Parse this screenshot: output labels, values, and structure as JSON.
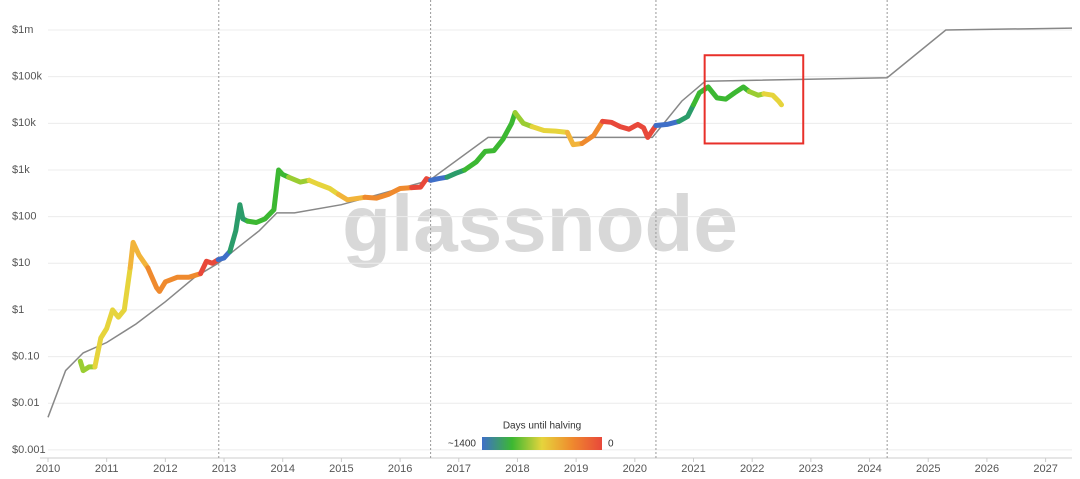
{
  "chart_data": {
    "type": "scatter",
    "log_y": true,
    "grid": true,
    "watermark": "glassnode",
    "xlim": [
      2010,
      2027.45
    ],
    "xticks": [
      2010,
      2011,
      2012,
      2013,
      2014,
      2015,
      2016,
      2017,
      2018,
      2019,
      2020,
      2021,
      2022,
      2023,
      2024,
      2025,
      2026,
      2027
    ],
    "ylim": [
      0.00067,
      4400000
    ],
    "yticks": [
      {
        "value": 0.001,
        "label": "$0.001"
      },
      {
        "value": 0.01,
        "label": "$0.01"
      },
      {
        "value": 0.1,
        "label": "$0.10"
      },
      {
        "value": 1,
        "label": "$1"
      },
      {
        "value": 10,
        "label": "$10"
      },
      {
        "value": 100,
        "label": "$100"
      },
      {
        "value": 1000,
        "label": "$1k"
      },
      {
        "value": 10000,
        "label": "$10k"
      },
      {
        "value": 100000,
        "label": "$100k"
      },
      {
        "value": 1000000,
        "label": "$1m"
      }
    ],
    "vlines": [
      2012.91,
      2016.52,
      2020.36,
      2024.3
    ],
    "highlight_box": {
      "x": [
        2021.19,
        2022.87
      ],
      "y": [
        3700,
        288000
      ],
      "color": "#e8302a"
    },
    "colorbar": {
      "title": "Days until halving",
      "min_label": "~1400",
      "max_label": "0",
      "colors": [
        "#3f6fc8",
        "#3cb832",
        "#e6d43c",
        "#ef8a2e",
        "#e8483a"
      ]
    },
    "line_series": {
      "color": "#888888",
      "x": [
        2010,
        2010.3,
        2010.6,
        2011,
        2011.5,
        2012,
        2012.5,
        2012.9,
        2013.2,
        2013.6,
        2013.9,
        2014.2,
        2015,
        2016,
        2016.5,
        2017.5,
        2020.3,
        2020.8,
        2021.2,
        2024.3,
        2025.3,
        2027.45
      ],
      "values": [
        0.005,
        0.05,
        0.12,
        0.2,
        0.5,
        1.5,
        5,
        10,
        20,
        50,
        120,
        120,
        180,
        400,
        600,
        5000,
        5000,
        30000,
        80000,
        95000,
        1000000,
        1100000
      ]
    },
    "series": [
      {
        "color": "#9acd32",
        "x": [
          2010.55,
          2010.6,
          2010.7,
          2010.8
        ],
        "values": [
          0.08,
          0.05,
          0.06,
          0.06
        ]
      },
      {
        "color": "#e6d43c",
        "x": [
          2010.8,
          2010.9,
          2011.0,
          2011.1,
          2011.2,
          2011.3,
          2011.4
        ],
        "values": [
          0.06,
          0.25,
          0.4,
          1.0,
          0.7,
          1.0,
          8
        ]
      },
      {
        "color": "#f2b43a",
        "x": [
          2011.4,
          2011.45,
          2011.55,
          2011.7
        ],
        "values": [
          8,
          28,
          15,
          8
        ]
      },
      {
        "color": "#ef8a2e",
        "x": [
          2011.7,
          2011.85,
          2011.9,
          2012.0,
          2012.2,
          2012.4,
          2012.6
        ],
        "values": [
          8,
          3,
          2.5,
          4,
          5,
          5,
          6
        ]
      },
      {
        "color": "#e8483a",
        "x": [
          2012.6,
          2012.7,
          2012.8,
          2012.9
        ],
        "values": [
          6,
          11,
          10,
          12
        ]
      },
      {
        "color": "#3f6fc8",
        "x": [
          2012.9,
          2013.0,
          2013.1
        ],
        "values": [
          12,
          13,
          18
        ]
      },
      {
        "color": "#2b9c6a",
        "x": [
          2013.1,
          2013.2,
          2013.27,
          2013.32,
          2013.4
        ],
        "values": [
          18,
          50,
          180,
          90,
          80
        ]
      },
      {
        "color": "#3cb832",
        "x": [
          2013.4,
          2013.55,
          2013.7,
          2013.85,
          2013.93,
          2014.0,
          2014.1
        ],
        "values": [
          80,
          75,
          90,
          140,
          1000,
          800,
          700
        ]
      },
      {
        "color": "#9acd32",
        "x": [
          2014.1,
          2014.3,
          2014.45
        ],
        "values": [
          700,
          550,
          600
        ]
      },
      {
        "color": "#e6d43c",
        "x": [
          2014.45,
          2014.6,
          2014.8,
          2014.95
        ],
        "values": [
          600,
          500,
          400,
          300
        ]
      },
      {
        "color": "#f2b43a",
        "x": [
          2014.95,
          2015.1,
          2015.4
        ],
        "values": [
          300,
          230,
          260
        ]
      },
      {
        "color": "#ef8a2e",
        "x": [
          2015.4,
          2015.6,
          2015.8,
          2016.0,
          2016.2
        ],
        "values": [
          260,
          250,
          300,
          400,
          420
        ]
      },
      {
        "color": "#e8483a",
        "x": [
          2016.2,
          2016.35,
          2016.45,
          2016.52
        ],
        "values": [
          420,
          430,
          650,
          600
        ]
      },
      {
        "color": "#3f6fc8",
        "x": [
          2016.52,
          2016.65,
          2016.8
        ],
        "values": [
          600,
          650,
          700
        ]
      },
      {
        "color": "#2b9c6a",
        "x": [
          2016.8,
          2016.95,
          2017.1
        ],
        "values": [
          700,
          850,
          1000
        ]
      },
      {
        "color": "#3cb832",
        "x": [
          2017.1,
          2017.3,
          2017.45,
          2017.6,
          2017.75,
          2017.9,
          2017.96
        ],
        "values": [
          1000,
          1500,
          2500,
          2600,
          4500,
          10000,
          17000
        ]
      },
      {
        "color": "#9acd32",
        "x": [
          2017.96,
          2018.1,
          2018.25
        ],
        "values": [
          17000,
          10000,
          8500
        ]
      },
      {
        "color": "#e6d43c",
        "x": [
          2018.25,
          2018.45,
          2018.65,
          2018.85
        ],
        "values": [
          8500,
          7000,
          6800,
          6400
        ]
      },
      {
        "color": "#f2b43a",
        "x": [
          2018.85,
          2018.95,
          2019.1
        ],
        "values": [
          6400,
          3500,
          3700
        ]
      },
      {
        "color": "#ef8a2e",
        "x": [
          2019.1,
          2019.3,
          2019.45
        ],
        "values": [
          3700,
          5500,
          11000
        ]
      },
      {
        "color": "#e8483a",
        "x": [
          2019.45,
          2019.6,
          2019.75,
          2019.9,
          2020.05,
          2020.15,
          2020.22,
          2020.36
        ],
        "values": [
          11000,
          10500,
          8500,
          7500,
          9500,
          8000,
          5000,
          9000
        ]
      },
      {
        "color": "#3f6fc8",
        "x": [
          2020.36,
          2020.55,
          2020.75
        ],
        "values": [
          9000,
          9500,
          11000
        ]
      },
      {
        "color": "#2b9c6a",
        "x": [
          2020.75,
          2020.9,
          2021.0
        ],
        "values": [
          11000,
          14000,
          25000
        ]
      },
      {
        "color": "#3cb832",
        "x": [
          2021.0,
          2021.1,
          2021.25,
          2021.4,
          2021.55,
          2021.7,
          2021.85,
          2021.95
        ],
        "values": [
          25000,
          45000,
          60000,
          35000,
          33000,
          45000,
          60000,
          48000
        ]
      },
      {
        "color": "#9acd32",
        "x": [
          2021.95,
          2022.1,
          2022.2
        ],
        "values": [
          48000,
          40000,
          43000
        ]
      },
      {
        "color": "#e6d43c",
        "x": [
          2022.2,
          2022.35,
          2022.45,
          2022.5
        ],
        "values": [
          43000,
          40000,
          30000,
          25000
        ]
      }
    ]
  }
}
